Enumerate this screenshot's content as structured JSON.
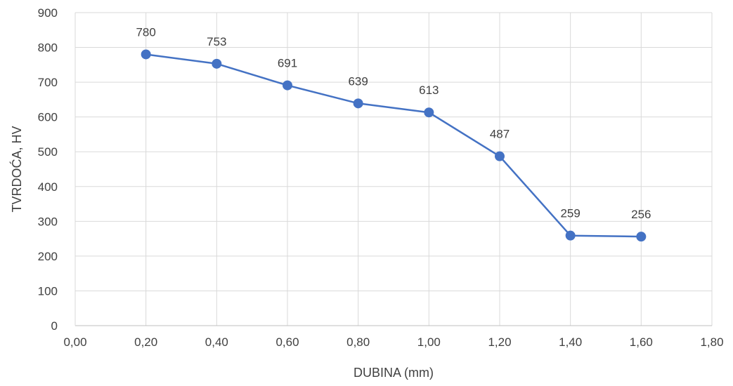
{
  "chart_data": {
    "type": "scatter",
    "mode": "lines+markers",
    "xlabel": "DUBINA (mm)",
    "ylabel": "TVRDOĆA, HV",
    "xlim": [
      0,
      1.8
    ],
    "ylim": [
      0,
      900
    ],
    "x_ticks": [
      "0,00",
      "0,20",
      "0,40",
      "0,60",
      "0,80",
      "1,00",
      "1,20",
      "1,40",
      "1,60",
      "1,80"
    ],
    "y_ticks": [
      "0",
      "100",
      "200",
      "300",
      "400",
      "500",
      "600",
      "700",
      "800",
      "900"
    ],
    "grid": true,
    "legend": "none",
    "series": [
      {
        "x": [
          0.2,
          0.4,
          0.6,
          0.8,
          1.0,
          1.2,
          1.4,
          1.6
        ],
        "y": [
          780,
          753,
          691,
          639,
          613,
          487,
          259,
          256
        ],
        "labels": [
          "780",
          "753",
          "691",
          "639",
          "613",
          "487",
          "259",
          "256"
        ],
        "color": "#4472c4"
      }
    ]
  }
}
